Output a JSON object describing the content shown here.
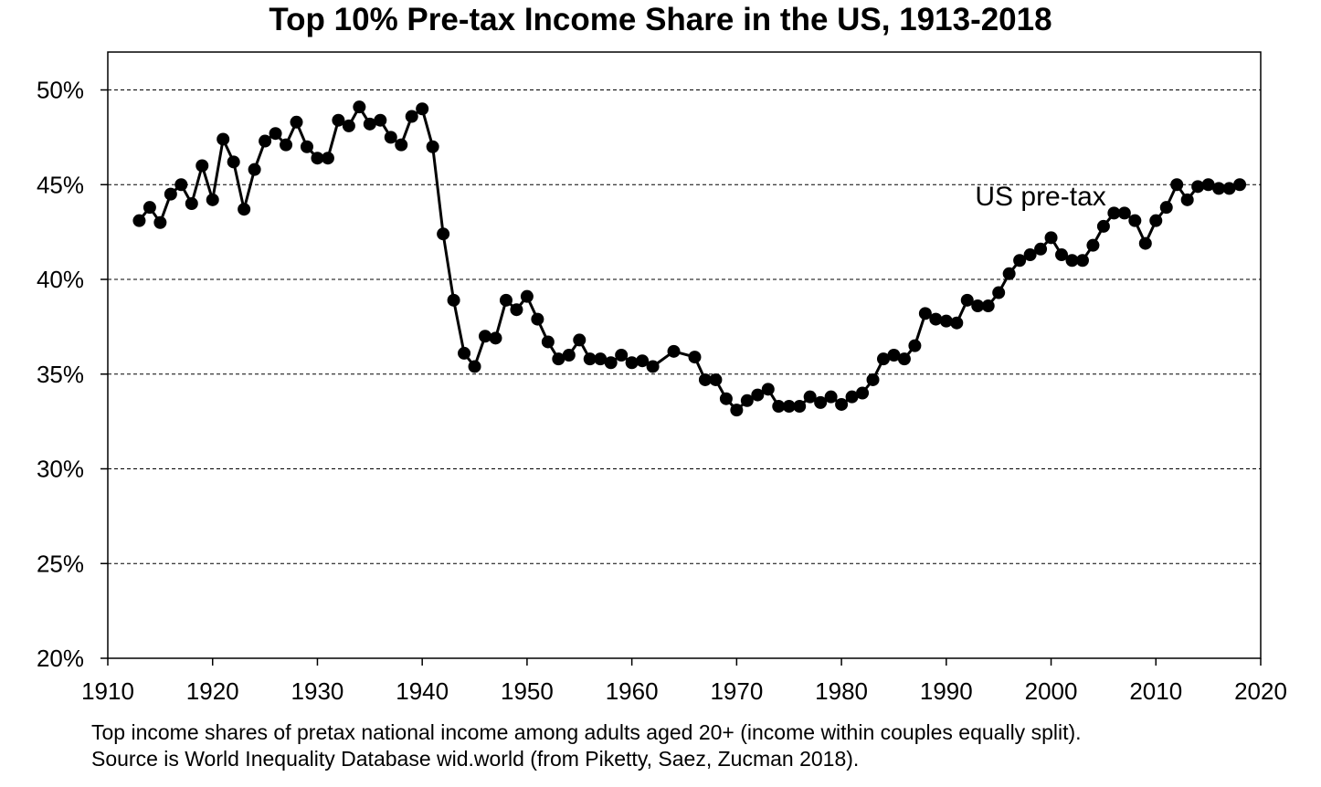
{
  "chart_data": {
    "type": "line",
    "title": "Top 10% Pre-tax Income Share in the US, 1913-2018",
    "xlabel": "",
    "ylabel": "",
    "xlim": [
      1910,
      2020
    ],
    "ylim": [
      20,
      52
    ],
    "x_ticks": [
      1910,
      1920,
      1930,
      1940,
      1950,
      1960,
      1970,
      1980,
      1990,
      2000,
      2010,
      2020
    ],
    "y_ticks": [
      20,
      25,
      30,
      35,
      40,
      45,
      50
    ],
    "y_tick_labels": [
      "20%",
      "25%",
      "30%",
      "35%",
      "40%",
      "45%",
      "50%"
    ],
    "grid": "horizontal-dashed",
    "series": [
      {
        "name": "US pre-tax",
        "color": "#000000",
        "marker": "circle",
        "points": [
          [
            1913,
            43.1
          ],
          [
            1914,
            43.8
          ],
          [
            1915,
            43.0
          ],
          [
            1916,
            44.5
          ],
          [
            1917,
            45.0
          ],
          [
            1918,
            44.0
          ],
          [
            1919,
            46.0
          ],
          [
            1920,
            44.2
          ],
          [
            1921,
            47.4
          ],
          [
            1922,
            46.2
          ],
          [
            1923,
            43.7
          ],
          [
            1924,
            45.8
          ],
          [
            1925,
            47.3
          ],
          [
            1926,
            47.7
          ],
          [
            1927,
            47.1
          ],
          [
            1928,
            48.3
          ],
          [
            1929,
            47.0
          ],
          [
            1930,
            46.4
          ],
          [
            1931,
            46.4
          ],
          [
            1932,
            48.4
          ],
          [
            1933,
            48.1
          ],
          [
            1934,
            49.1
          ],
          [
            1935,
            48.2
          ],
          [
            1936,
            48.4
          ],
          [
            1937,
            47.5
          ],
          [
            1938,
            47.1
          ],
          [
            1939,
            48.6
          ],
          [
            1940,
            49.0
          ],
          [
            1941,
            47.0
          ],
          [
            1942,
            42.4
          ],
          [
            1943,
            38.9
          ],
          [
            1944,
            36.1
          ],
          [
            1945,
            35.4
          ],
          [
            1946,
            37.0
          ],
          [
            1947,
            36.9
          ],
          [
            1948,
            38.9
          ],
          [
            1949,
            38.4
          ],
          [
            1950,
            39.1
          ],
          [
            1951,
            37.9
          ],
          [
            1952,
            36.7
          ],
          [
            1953,
            35.8
          ],
          [
            1954,
            36.0
          ],
          [
            1955,
            36.8
          ],
          [
            1956,
            35.8
          ],
          [
            1957,
            35.8
          ],
          [
            1958,
            35.6
          ],
          [
            1959,
            36.0
          ],
          [
            1960,
            35.6
          ],
          [
            1961,
            35.7
          ],
          [
            1962,
            35.4
          ],
          [
            1964,
            36.2
          ],
          [
            1966,
            35.9
          ],
          [
            1967,
            34.7
          ],
          [
            1968,
            34.7
          ],
          [
            1969,
            33.7
          ],
          [
            1970,
            33.1
          ],
          [
            1971,
            33.6
          ],
          [
            1972,
            33.9
          ],
          [
            1973,
            34.2
          ],
          [
            1974,
            33.3
          ],
          [
            1975,
            33.3
          ],
          [
            1976,
            33.3
          ],
          [
            1977,
            33.8
          ],
          [
            1978,
            33.5
          ],
          [
            1979,
            33.8
          ],
          [
            1980,
            33.4
          ],
          [
            1981,
            33.8
          ],
          [
            1982,
            34.0
          ],
          [
            1983,
            34.7
          ],
          [
            1984,
            35.8
          ],
          [
            1985,
            36.0
          ],
          [
            1986,
            35.8
          ],
          [
            1987,
            36.5
          ],
          [
            1988,
            38.2
          ],
          [
            1989,
            37.9
          ],
          [
            1990,
            37.8
          ],
          [
            1991,
            37.7
          ],
          [
            1992,
            38.9
          ],
          [
            1993,
            38.6
          ],
          [
            1994,
            38.6
          ],
          [
            1995,
            39.3
          ],
          [
            1996,
            40.3
          ],
          [
            1997,
            41.0
          ],
          [
            1998,
            41.3
          ],
          [
            1999,
            41.6
          ],
          [
            2000,
            42.2
          ],
          [
            2001,
            41.3
          ],
          [
            2002,
            41.0
          ],
          [
            2003,
            41.0
          ],
          [
            2004,
            41.8
          ],
          [
            2005,
            42.8
          ],
          [
            2006,
            43.5
          ],
          [
            2007,
            43.5
          ],
          [
            2008,
            43.1
          ],
          [
            2009,
            41.9
          ],
          [
            2010,
            43.1
          ],
          [
            2011,
            43.8
          ],
          [
            2012,
            45.0
          ],
          [
            2013,
            44.2
          ],
          [
            2014,
            44.9
          ],
          [
            2015,
            45.0
          ],
          [
            2016,
            44.8
          ],
          [
            2017,
            44.8
          ],
          [
            2018,
            45.0
          ]
        ]
      }
    ],
    "annotations": [
      {
        "text": "US pre-tax",
        "x": 1999,
        "y": 43.9
      }
    ]
  },
  "notes": {
    "line1": "Top income shares of pretax national income among adults aged 20+ (income within couples equally split).",
    "line2": "Source is World Inequality Database wid.world (from Piketty, Saez, Zucman 2018)."
  }
}
